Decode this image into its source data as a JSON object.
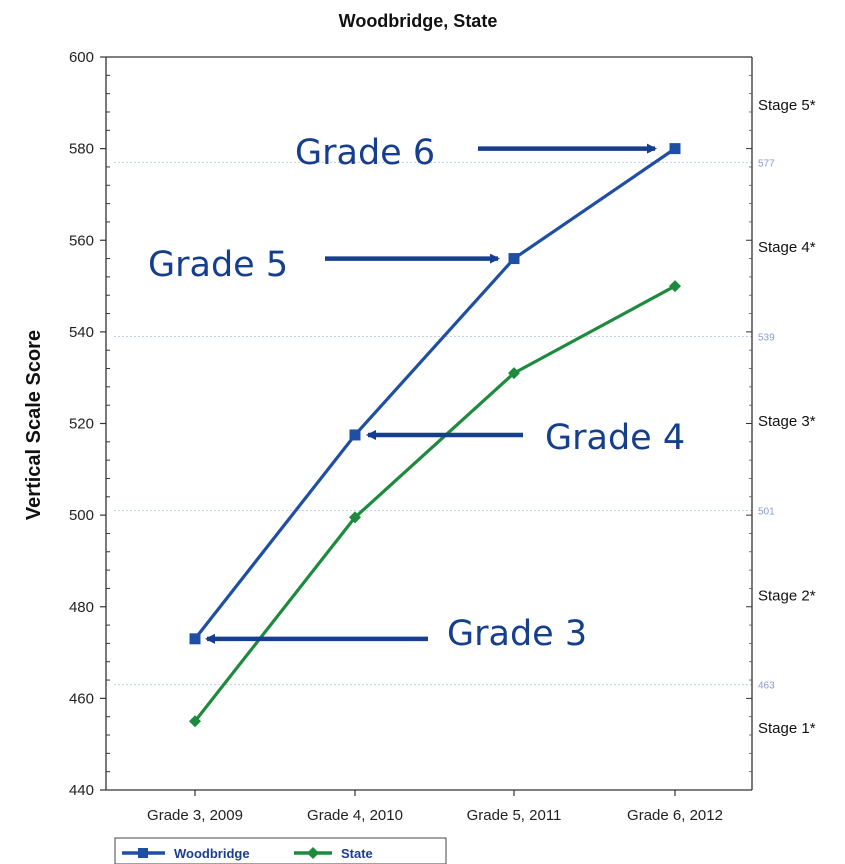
{
  "chart_data": {
    "type": "line",
    "title": "Woodbridge, State",
    "ylabel": "Vertical Scale Score",
    "xlabel": "",
    "ylim": [
      440,
      600
    ],
    "yticks": [
      440,
      460,
      480,
      500,
      520,
      540,
      560,
      580,
      600
    ],
    "categories": [
      "Grade 3, 2009",
      "Grade 4, 2010",
      "Grade 5, 2011",
      "Grade 6, 2012"
    ],
    "series": [
      {
        "name": "Woodbridge",
        "color": "#1f4fa3",
        "marker": "square",
        "values": [
          473,
          517.5,
          556,
          580
        ]
      },
      {
        "name": "State",
        "color": "#1e8a3e",
        "marker": "diamond",
        "values": [
          455,
          499.5,
          531,
          550
        ]
      }
    ],
    "cut_lines": [
      {
        "value": 577,
        "label": "577"
      },
      {
        "value": 539,
        "label": "539"
      },
      {
        "value": 501,
        "label": "501"
      },
      {
        "value": 463,
        "label": "463"
      }
    ],
    "stages": [
      {
        "label": "Stage 5*",
        "value": 589.5
      },
      {
        "label": "Stage 4*",
        "value": 558.5
      },
      {
        "label": "Stage 3*",
        "value": 520.5
      },
      {
        "label": "Stage 2*",
        "value": 482.5
      },
      {
        "label": "Stage 1*",
        "value": 453.5
      }
    ],
    "annotations": [
      {
        "text": "Grade 6",
        "target_category": 3,
        "target_series": "Woodbridge",
        "side": "left"
      },
      {
        "text": "Grade 5",
        "target_category": 2,
        "target_series": "Woodbridge",
        "side": "left"
      },
      {
        "text": "Grade 4",
        "target_category": 1,
        "target_series": "Woodbridge",
        "side": "right"
      },
      {
        "text": "Grade 3",
        "target_category": 0,
        "target_series": "Woodbridge",
        "side": "right"
      }
    ],
    "grid": false,
    "legend": "bottom-left"
  }
}
